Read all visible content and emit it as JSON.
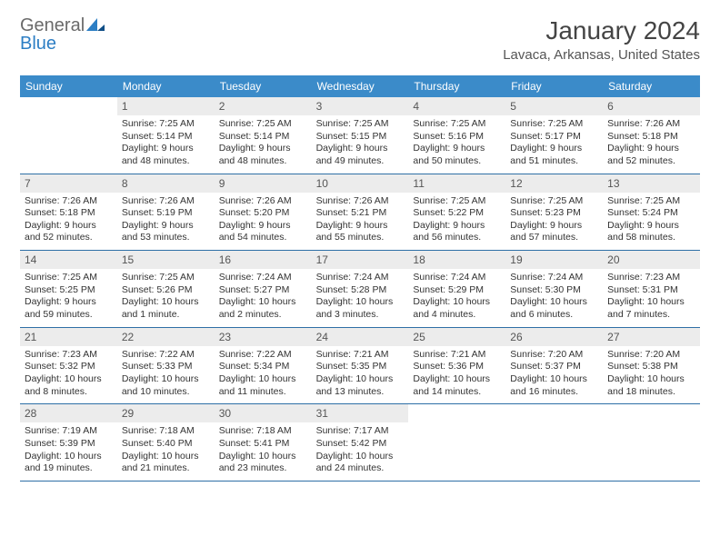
{
  "logo": {
    "word1": "General",
    "word2": "Blue"
  },
  "title": "January 2024",
  "subtitle": "Lavaca, Arkansas, United States",
  "colors": {
    "header_bg": "#3b8bc9",
    "header_text": "#ffffff",
    "daynum_bg": "#ececec",
    "rule": "#2e6fa6",
    "logo_gray": "#6a6a6a",
    "logo_blue": "#2c7ec4"
  },
  "days_of_week": [
    "Sunday",
    "Monday",
    "Tuesday",
    "Wednesday",
    "Thursday",
    "Friday",
    "Saturday"
  ],
  "weeks": [
    [
      {
        "n": "",
        "sr": "",
        "ss": "",
        "dl": ""
      },
      {
        "n": "1",
        "sr": "Sunrise: 7:25 AM",
        "ss": "Sunset: 5:14 PM",
        "dl": "Daylight: 9 hours and 48 minutes."
      },
      {
        "n": "2",
        "sr": "Sunrise: 7:25 AM",
        "ss": "Sunset: 5:14 PM",
        "dl": "Daylight: 9 hours and 48 minutes."
      },
      {
        "n": "3",
        "sr": "Sunrise: 7:25 AM",
        "ss": "Sunset: 5:15 PM",
        "dl": "Daylight: 9 hours and 49 minutes."
      },
      {
        "n": "4",
        "sr": "Sunrise: 7:25 AM",
        "ss": "Sunset: 5:16 PM",
        "dl": "Daylight: 9 hours and 50 minutes."
      },
      {
        "n": "5",
        "sr": "Sunrise: 7:25 AM",
        "ss": "Sunset: 5:17 PM",
        "dl": "Daylight: 9 hours and 51 minutes."
      },
      {
        "n": "6",
        "sr": "Sunrise: 7:26 AM",
        "ss": "Sunset: 5:18 PM",
        "dl": "Daylight: 9 hours and 52 minutes."
      }
    ],
    [
      {
        "n": "7",
        "sr": "Sunrise: 7:26 AM",
        "ss": "Sunset: 5:18 PM",
        "dl": "Daylight: 9 hours and 52 minutes."
      },
      {
        "n": "8",
        "sr": "Sunrise: 7:26 AM",
        "ss": "Sunset: 5:19 PM",
        "dl": "Daylight: 9 hours and 53 minutes."
      },
      {
        "n": "9",
        "sr": "Sunrise: 7:26 AM",
        "ss": "Sunset: 5:20 PM",
        "dl": "Daylight: 9 hours and 54 minutes."
      },
      {
        "n": "10",
        "sr": "Sunrise: 7:26 AM",
        "ss": "Sunset: 5:21 PM",
        "dl": "Daylight: 9 hours and 55 minutes."
      },
      {
        "n": "11",
        "sr": "Sunrise: 7:25 AM",
        "ss": "Sunset: 5:22 PM",
        "dl": "Daylight: 9 hours and 56 minutes."
      },
      {
        "n": "12",
        "sr": "Sunrise: 7:25 AM",
        "ss": "Sunset: 5:23 PM",
        "dl": "Daylight: 9 hours and 57 minutes."
      },
      {
        "n": "13",
        "sr": "Sunrise: 7:25 AM",
        "ss": "Sunset: 5:24 PM",
        "dl": "Daylight: 9 hours and 58 minutes."
      }
    ],
    [
      {
        "n": "14",
        "sr": "Sunrise: 7:25 AM",
        "ss": "Sunset: 5:25 PM",
        "dl": "Daylight: 9 hours and 59 minutes."
      },
      {
        "n": "15",
        "sr": "Sunrise: 7:25 AM",
        "ss": "Sunset: 5:26 PM",
        "dl": "Daylight: 10 hours and 1 minute."
      },
      {
        "n": "16",
        "sr": "Sunrise: 7:24 AM",
        "ss": "Sunset: 5:27 PM",
        "dl": "Daylight: 10 hours and 2 minutes."
      },
      {
        "n": "17",
        "sr": "Sunrise: 7:24 AM",
        "ss": "Sunset: 5:28 PM",
        "dl": "Daylight: 10 hours and 3 minutes."
      },
      {
        "n": "18",
        "sr": "Sunrise: 7:24 AM",
        "ss": "Sunset: 5:29 PM",
        "dl": "Daylight: 10 hours and 4 minutes."
      },
      {
        "n": "19",
        "sr": "Sunrise: 7:24 AM",
        "ss": "Sunset: 5:30 PM",
        "dl": "Daylight: 10 hours and 6 minutes."
      },
      {
        "n": "20",
        "sr": "Sunrise: 7:23 AM",
        "ss": "Sunset: 5:31 PM",
        "dl": "Daylight: 10 hours and 7 minutes."
      }
    ],
    [
      {
        "n": "21",
        "sr": "Sunrise: 7:23 AM",
        "ss": "Sunset: 5:32 PM",
        "dl": "Daylight: 10 hours and 8 minutes."
      },
      {
        "n": "22",
        "sr": "Sunrise: 7:22 AM",
        "ss": "Sunset: 5:33 PM",
        "dl": "Daylight: 10 hours and 10 minutes."
      },
      {
        "n": "23",
        "sr": "Sunrise: 7:22 AM",
        "ss": "Sunset: 5:34 PM",
        "dl": "Daylight: 10 hours and 11 minutes."
      },
      {
        "n": "24",
        "sr": "Sunrise: 7:21 AM",
        "ss": "Sunset: 5:35 PM",
        "dl": "Daylight: 10 hours and 13 minutes."
      },
      {
        "n": "25",
        "sr": "Sunrise: 7:21 AM",
        "ss": "Sunset: 5:36 PM",
        "dl": "Daylight: 10 hours and 14 minutes."
      },
      {
        "n": "26",
        "sr": "Sunrise: 7:20 AM",
        "ss": "Sunset: 5:37 PM",
        "dl": "Daylight: 10 hours and 16 minutes."
      },
      {
        "n": "27",
        "sr": "Sunrise: 7:20 AM",
        "ss": "Sunset: 5:38 PM",
        "dl": "Daylight: 10 hours and 18 minutes."
      }
    ],
    [
      {
        "n": "28",
        "sr": "Sunrise: 7:19 AM",
        "ss": "Sunset: 5:39 PM",
        "dl": "Daylight: 10 hours and 19 minutes."
      },
      {
        "n": "29",
        "sr": "Sunrise: 7:18 AM",
        "ss": "Sunset: 5:40 PM",
        "dl": "Daylight: 10 hours and 21 minutes."
      },
      {
        "n": "30",
        "sr": "Sunrise: 7:18 AM",
        "ss": "Sunset: 5:41 PM",
        "dl": "Daylight: 10 hours and 23 minutes."
      },
      {
        "n": "31",
        "sr": "Sunrise: 7:17 AM",
        "ss": "Sunset: 5:42 PM",
        "dl": "Daylight: 10 hours and 24 minutes."
      },
      {
        "n": "",
        "sr": "",
        "ss": "",
        "dl": ""
      },
      {
        "n": "",
        "sr": "",
        "ss": "",
        "dl": ""
      },
      {
        "n": "",
        "sr": "",
        "ss": "",
        "dl": ""
      }
    ]
  ]
}
